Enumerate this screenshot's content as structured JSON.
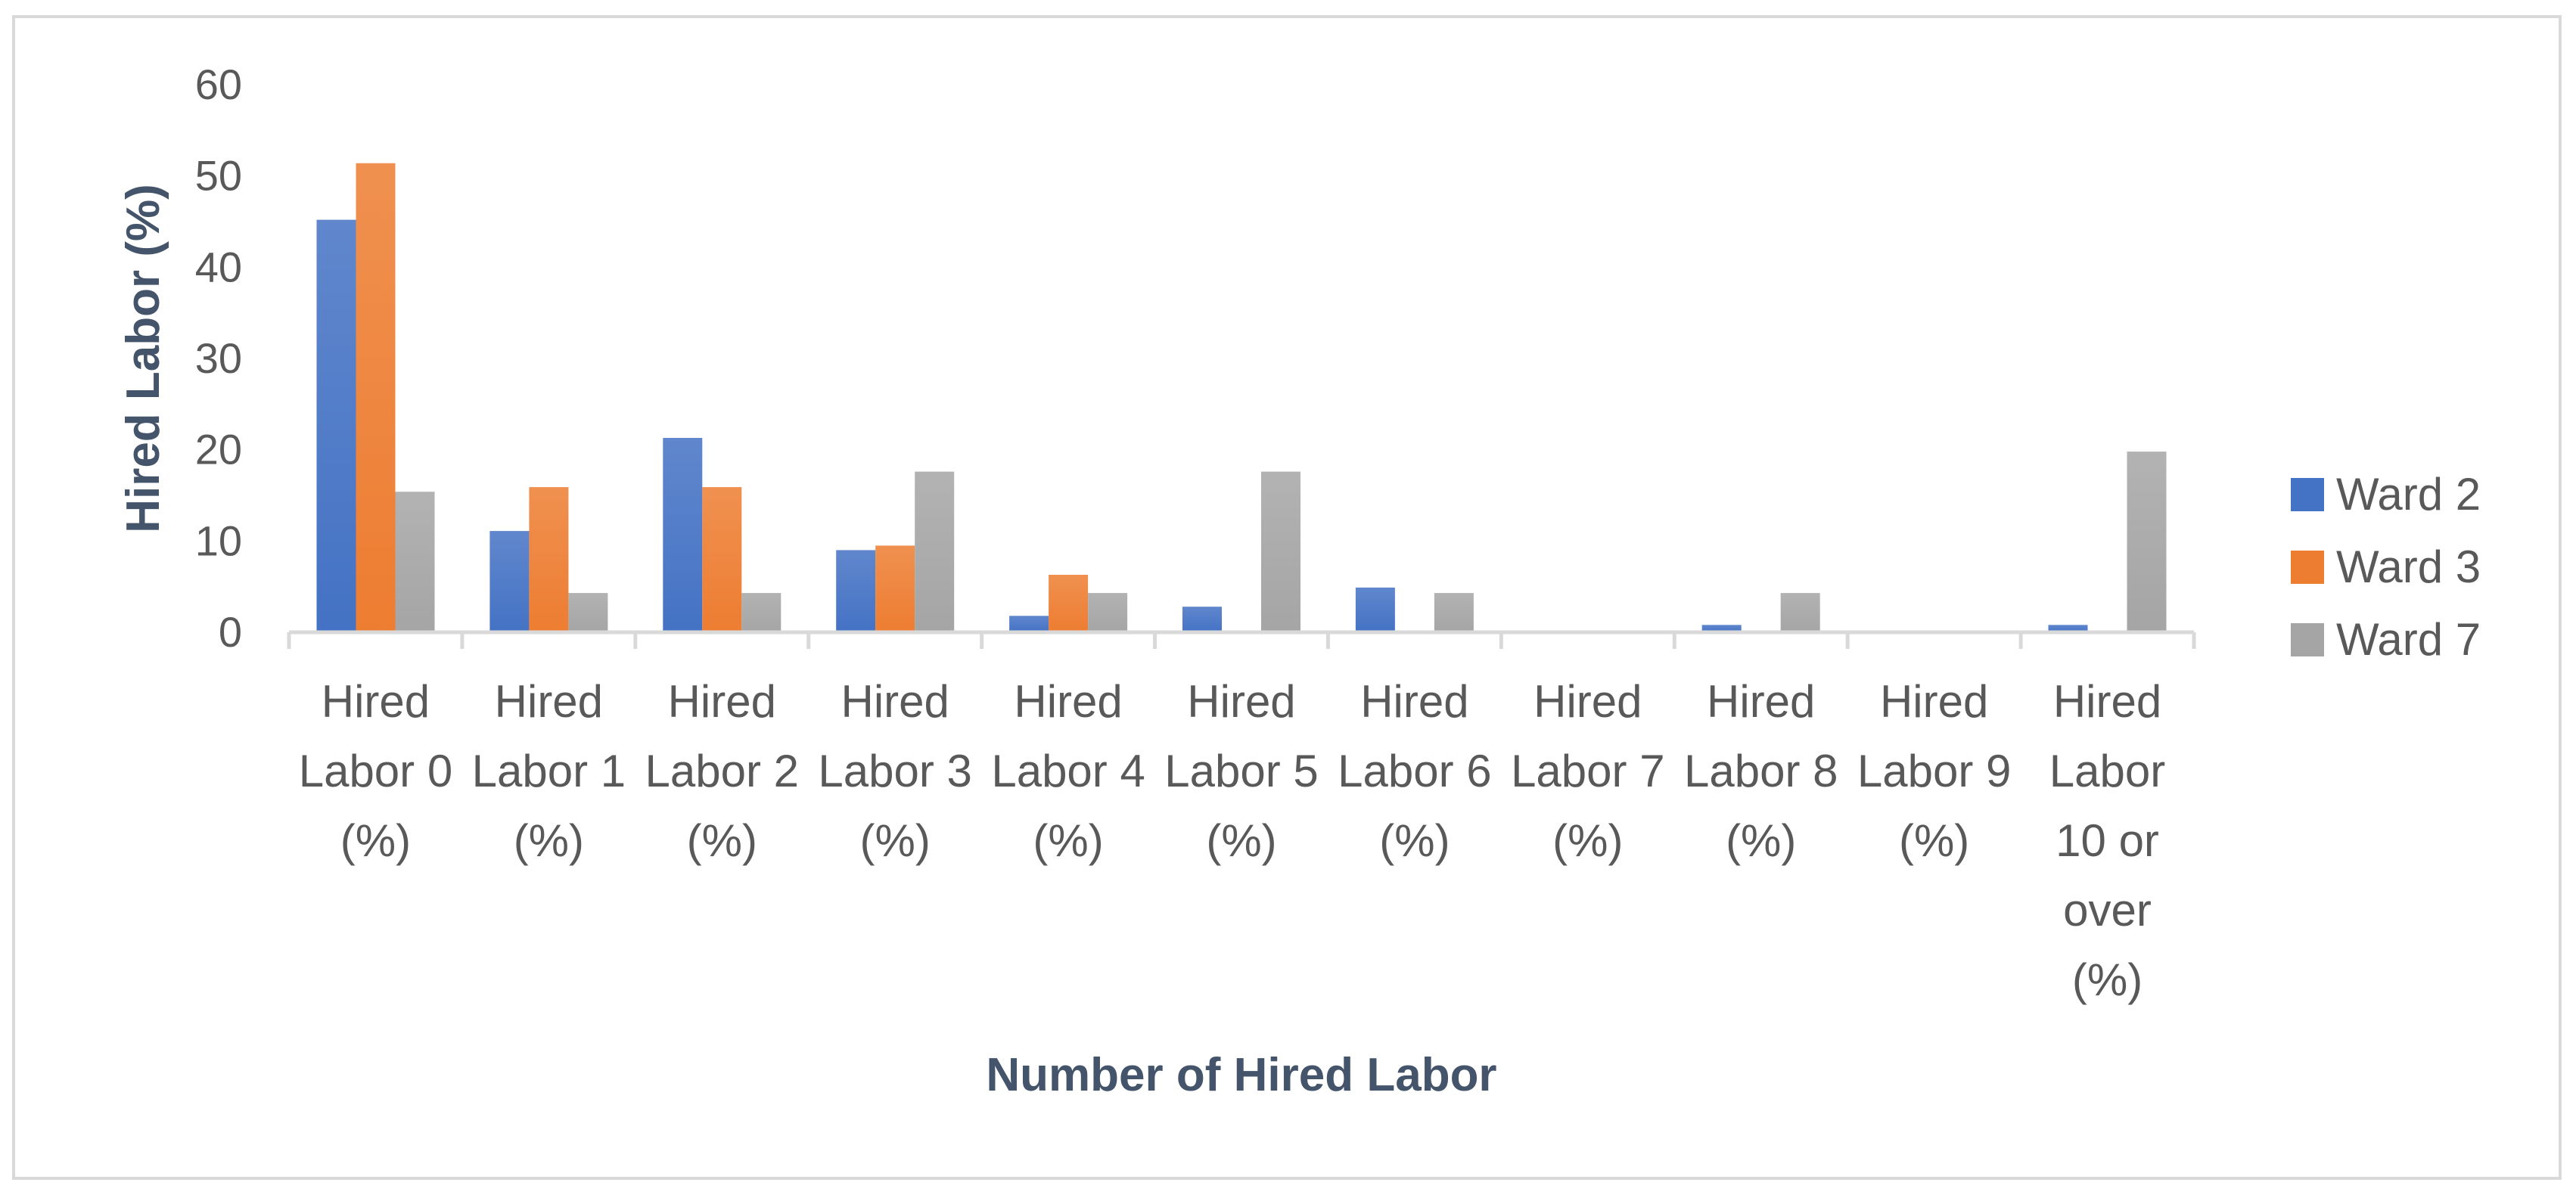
{
  "chart_data": {
    "type": "bar",
    "title": "",
    "xlabel": "Number of Hired Labor",
    "ylabel": "Hired Labor (%)",
    "ylim": [
      0,
      60
    ],
    "yticks": [
      0,
      10,
      20,
      30,
      40,
      50,
      60
    ],
    "grid": false,
    "legend_position": "right",
    "categories": [
      [
        "Hired",
        "Labor 0",
        "(%)"
      ],
      [
        "Hired",
        "Labor 1",
        "(%)"
      ],
      [
        "Hired",
        "Labor 2",
        "(%)"
      ],
      [
        "Hired",
        "Labor 3",
        "(%)"
      ],
      [
        "Hired",
        "Labor 4",
        "(%)"
      ],
      [
        "Hired",
        "Labor 5",
        "(%)"
      ],
      [
        "Hired",
        "Labor 6",
        "(%)"
      ],
      [
        "Hired",
        "Labor 7",
        "(%)"
      ],
      [
        "Hired",
        "Labor 8",
        "(%)"
      ],
      [
        "Hired",
        "Labor 9",
        "(%)"
      ],
      [
        "Hired",
        "Labor",
        "10 or",
        "over",
        "(%)"
      ]
    ],
    "series": [
      {
        "name": "Ward 2",
        "color": "#4472c4",
        "values": [
          45.2,
          11.1,
          21.3,
          9.0,
          1.8,
          2.8,
          4.9,
          0,
          0.8,
          0,
          0.8
        ]
      },
      {
        "name": "Ward 3",
        "color": "#ed7d31",
        "values": [
          51.4,
          15.9,
          15.9,
          9.5,
          6.3,
          0,
          0,
          0,
          0,
          0,
          0
        ]
      },
      {
        "name": "Ward 7",
        "color": "#a5a5a5",
        "values": [
          15.4,
          4.3,
          4.3,
          17.6,
          4.3,
          17.6,
          4.3,
          0,
          4.3,
          0,
          19.8
        ]
      }
    ]
  }
}
